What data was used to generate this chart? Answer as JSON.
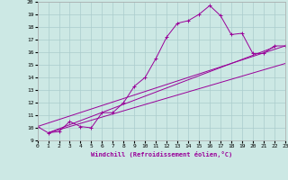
{
  "xlabel": "Windchill (Refroidissement éolien,°C)",
  "bg_color": "#cce8e4",
  "line_color": "#990099",
  "grid_color": "#aacccc",
  "xlim": [
    0,
    23
  ],
  "ylim": [
    9,
    20
  ],
  "xticks": [
    0,
    1,
    2,
    3,
    4,
    5,
    6,
    7,
    8,
    9,
    10,
    11,
    12,
    13,
    14,
    15,
    16,
    17,
    18,
    19,
    20,
    21,
    22,
    23
  ],
  "yticks": [
    9,
    10,
    11,
    12,
    13,
    14,
    15,
    16,
    17,
    18,
    19,
    20
  ],
  "series": [
    [
      0,
      10.1
    ],
    [
      1,
      9.6
    ],
    [
      2,
      9.7
    ],
    [
      3,
      10.5
    ],
    [
      4,
      10.1
    ],
    [
      5,
      10.0
    ],
    [
      6,
      11.2
    ],
    [
      7,
      11.2
    ],
    [
      8,
      12.0
    ],
    [
      9,
      13.3
    ],
    [
      10,
      14.0
    ],
    [
      11,
      15.5
    ],
    [
      12,
      17.2
    ],
    [
      13,
      18.3
    ],
    [
      14,
      18.5
    ],
    [
      15,
      19.0
    ],
    [
      16,
      19.7
    ],
    [
      17,
      18.9
    ],
    [
      18,
      17.4
    ],
    [
      19,
      17.5
    ],
    [
      20,
      15.9
    ],
    [
      21,
      15.9
    ],
    [
      22,
      16.5
    ],
    [
      23,
      16.5
    ]
  ],
  "line2": [
    [
      0,
      10.1
    ],
    [
      23,
      16.5
    ]
  ],
  "line3": [
    [
      1,
      9.6
    ],
    [
      23,
      15.1
    ]
  ],
  "line4": [
    [
      1,
      9.6
    ],
    [
      22,
      16.4
    ]
  ]
}
